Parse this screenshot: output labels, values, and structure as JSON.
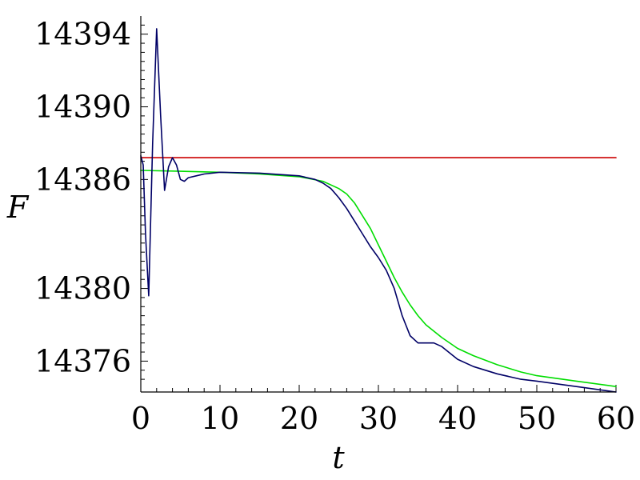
{
  "chart_data": {
    "type": "line",
    "title": "",
    "xlabel": "t",
    "ylabel": "F",
    "xlim": [
      0,
      60
    ],
    "ylim": [
      14374.3,
      14395.0
    ],
    "grid": false,
    "legend": "none",
    "x_ticks": [
      0,
      10,
      20,
      30,
      40,
      50,
      60
    ],
    "x_tick_labels": [
      "0",
      "10",
      "20",
      "30",
      "40",
      "50",
      "60"
    ],
    "y_ticks": [
      14376,
      14380,
      14386,
      14390,
      14394
    ],
    "y_tick_labels": [
      "14376",
      "14380",
      "14386",
      "14390",
      "14394"
    ],
    "series": [
      {
        "color": "#cc0000",
        "x": [
          0,
          60
        ],
        "y": [
          14387.2,
          14387.2
        ]
      },
      {
        "color": "#00dd00",
        "x": [
          0,
          5,
          10,
          15,
          20,
          23,
          25,
          26,
          27,
          28,
          29,
          30,
          31,
          32,
          33,
          34,
          35,
          36,
          38,
          40,
          42,
          45,
          48,
          50,
          55,
          60
        ],
        "y": [
          14386.5,
          14386.45,
          14386.4,
          14386.3,
          14386.15,
          14385.9,
          14385.5,
          14385.2,
          14384.7,
          14384.0,
          14383.3,
          14382.4,
          14381.5,
          14380.6,
          14379.8,
          14379.1,
          14378.5,
          14378.0,
          14377.3,
          14376.7,
          14376.3,
          14375.8,
          14375.4,
          14375.2,
          14374.9,
          14374.6
        ]
      },
      {
        "color": "#000066",
        "x": [
          0,
          0.3,
          0.6,
          1.0,
          1.5,
          2.0,
          2.5,
          3.0,
          3.5,
          4.0,
          4.5,
          5.0,
          5.5,
          6.0,
          7.0,
          8.0,
          10.0,
          15.0,
          20.0,
          22.0,
          23.0,
          24.0,
          25.0,
          26.0,
          27.0,
          28.0,
          29.0,
          30.0,
          31.0,
          32.0,
          33.0,
          34.0,
          35.0,
          36.0,
          37.0,
          38.0,
          40.0,
          42.0,
          45.0,
          48.0,
          50.0,
          55.0,
          60.0
        ],
        "y": [
          14387.3,
          14386.8,
          14383.0,
          14379.6,
          14388.0,
          14394.3,
          14389.5,
          14385.4,
          14386.7,
          14387.2,
          14386.8,
          14386.0,
          14385.9,
          14386.1,
          14386.2,
          14386.3,
          14386.4,
          14386.35,
          14386.2,
          14386.0,
          14385.8,
          14385.5,
          14385.0,
          14384.4,
          14383.7,
          14383.0,
          14382.3,
          14381.7,
          14381.0,
          14380.0,
          14378.5,
          14377.4,
          14377.0,
          14377.0,
          14377.0,
          14376.8,
          14376.1,
          14375.7,
          14375.3,
          14375.0,
          14374.9,
          14374.6,
          14374.3
        ]
      }
    ]
  }
}
